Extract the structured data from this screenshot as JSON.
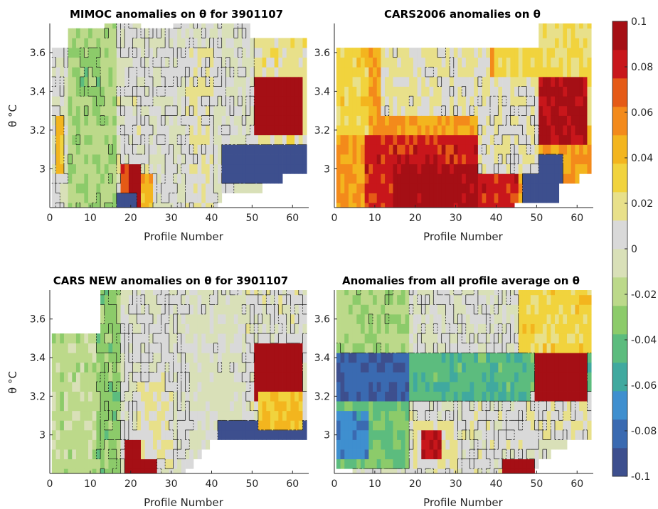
{
  "colors": {
    "ramp": [
      "#3d4f8e",
      "#3a6ab1",
      "#3f8fcf",
      "#40a99f",
      "#5cbc7e",
      "#8ccb6a",
      "#bcd98a",
      "#d9e0b8",
      "#d9d9d9",
      "#e8e08a",
      "#f1d33d",
      "#f3b51e",
      "#f38a1b",
      "#e55a16",
      "#c8161b",
      "#a50f15"
    ],
    "axis": "#262626",
    "contour": "#111111"
  },
  "chart_data": [
    {
      "type": "heatmap",
      "id": "mimoc",
      "title": "MIMOC anomalies on θ  for 3901107",
      "xlabel": "Profile Number",
      "ylabel": "θ °C",
      "xlim": [
        0,
        64
      ],
      "ylim": [
        2.8,
        3.75
      ],
      "xticks": [
        "0",
        "10",
        "20",
        "30",
        "40",
        "50",
        "60"
      ],
      "yticks": [
        "3",
        "3.2",
        "3.4",
        "3.6"
      ],
      "top_limit": [
        3.6,
        3.6,
        3.6,
        3.6,
        3.7,
        3.7,
        3.7,
        3.7,
        3.7,
        3.7,
        3.7,
        3.7,
        3.7,
        3.75,
        3.75,
        3.75,
        3.75,
        3.75,
        3.75,
        3.75,
        3.75,
        3.75,
        3.7,
        3.7,
        3.7,
        3.7,
        3.7,
        3.7,
        3.7,
        3.7,
        3.75,
        3.75,
        3.75,
        3.75,
        3.75,
        3.75,
        3.75,
        3.75,
        3.75,
        3.75,
        3.75,
        3.75,
        3.75,
        3.75,
        3.75,
        3.75,
        3.75,
        3.75,
        3.75,
        3.65,
        3.65,
        3.65,
        3.65,
        3.65,
        3.65,
        3.65,
        3.65,
        3.65,
        3.65,
        3.65,
        3.65,
        3.65,
        3.65
      ],
      "bottom_limit": [
        2.8,
        2.8,
        2.8,
        2.8,
        2.8,
        2.8,
        2.8,
        2.8,
        2.8,
        2.8,
        2.8,
        2.8,
        2.8,
        2.8,
        2.8,
        2.8,
        2.8,
        2.8,
        2.8,
        2.8,
        2.8,
        2.8,
        2.8,
        2.8,
        2.8,
        2.8,
        2.8,
        2.8,
        2.8,
        2.8,
        2.8,
        2.8,
        2.8,
        2.8,
        2.8,
        2.8,
        2.8,
        2.8,
        2.8,
        2.8,
        2.8,
        2.85,
        2.9,
        2.9,
        2.9,
        2.9,
        2.9,
        2.9,
        2.9,
        2.9,
        2.9,
        2.9,
        2.95,
        2.95,
        2.95,
        2.95,
        2.95,
        3.0,
        3.0,
        3.0,
        3.0,
        3.0,
        3.0
      ],
      "zones": [
        {
          "p": [
            1,
            3
          ],
          "t": [
            2.9,
            3.6
          ],
          "v": 0.0
        },
        {
          "p": [
            2,
            3
          ],
          "t": [
            3.0,
            3.25
          ],
          "v": 0.04
        },
        {
          "p": [
            5,
            16
          ],
          "t": [
            2.8,
            3.75
          ],
          "v": -0.022
        },
        {
          "p": [
            8,
            12
          ],
          "t": [
            3.3,
            3.6
          ],
          "v": -0.03
        },
        {
          "p": [
            17,
            24
          ],
          "t": [
            2.8,
            3.5
          ],
          "v": 0.005
        },
        {
          "p": [
            25,
            33
          ],
          "t": [
            2.8,
            3.75
          ],
          "v": 0.002
        },
        {
          "p": [
            34,
            40
          ],
          "t": [
            2.8,
            3.6
          ],
          "v": 0.012
        },
        {
          "p": [
            41,
            50
          ],
          "t": [
            3.15,
            3.75
          ],
          "v": 0.002
        },
        {
          "p": [
            51,
            64
          ],
          "t": [
            3.0,
            3.65
          ],
          "v": 0.018
        },
        {
          "p": [
            43,
            64
          ],
          "t": [
            2.95,
            3.1
          ],
          "v": -0.1
        },
        {
          "p": [
            51,
            62
          ],
          "t": [
            3.2,
            3.45
          ],
          "v": 0.1
        },
        {
          "p": [
            19,
            22
          ],
          "t": [
            2.8,
            3.0
          ],
          "v": 0.1
        },
        {
          "p": [
            18,
            19
          ],
          "t": [
            2.9,
            3.0
          ],
          "v": 0.07
        },
        {
          "p": [
            23,
            25
          ],
          "t": [
            2.8,
            2.95
          ],
          "v": 0.045
        },
        {
          "p": [
            17,
            21
          ],
          "t": [
            2.8,
            2.85
          ],
          "v": -0.1
        }
      ]
    },
    {
      "type": "heatmap",
      "id": "cars2006",
      "title": "CARS2006 anomalies on θ",
      "xlabel": "Profile Number",
      "ylabel": "",
      "xlim": [
        0,
        64
      ],
      "ylim": [
        2.8,
        3.75
      ],
      "xticks": [
        "0",
        "10",
        "20",
        "30",
        "40",
        "50",
        "60"
      ],
      "yticks": [
        "3",
        "3.2",
        "3.4",
        "3.6"
      ],
      "top_limit": [
        3.6,
        3.6,
        3.6,
        3.6,
        3.6,
        3.6,
        3.6,
        3.6,
        3.6,
        3.6,
        3.6,
        3.6,
        3.6,
        3.6,
        3.6,
        3.6,
        3.6,
        3.6,
        3.6,
        3.6,
        3.6,
        3.6,
        3.6,
        3.6,
        3.6,
        3.6,
        3.6,
        3.6,
        3.6,
        3.6,
        3.6,
        3.6,
        3.6,
        3.6,
        3.6,
        3.6,
        3.6,
        3.6,
        3.6,
        3.6,
        3.6,
        3.6,
        3.6,
        3.6,
        3.6,
        3.6,
        3.6,
        3.6,
        3.6,
        3.6,
        3.75,
        3.75,
        3.75,
        3.75,
        3.75,
        3.75,
        3.75,
        3.75,
        3.75,
        3.75,
        3.75,
        3.75,
        3.75
      ],
      "bottom_limit": [
        2.8,
        2.8,
        2.8,
        2.8,
        2.8,
        2.8,
        2.8,
        2.8,
        2.8,
        2.8,
        2.8,
        2.8,
        2.8,
        2.8,
        2.8,
        2.8,
        2.8,
        2.8,
        2.8,
        2.8,
        2.8,
        2.8,
        2.8,
        2.8,
        2.8,
        2.8,
        2.8,
        2.8,
        2.8,
        2.8,
        2.8,
        2.8,
        2.8,
        2.8,
        2.8,
        2.8,
        2.8,
        2.8,
        2.8,
        2.8,
        2.8,
        2.8,
        2.8,
        2.8,
        2.85,
        2.85,
        2.85,
        2.85,
        2.85,
        2.85,
        2.85,
        2.85,
        2.85,
        2.85,
        2.85,
        2.95,
        2.95,
        2.95,
        2.95,
        2.95,
        3.0,
        3.0,
        3.0
      ],
      "zones": [
        {
          "p": [
            1,
            64
          ],
          "t": [
            2.8,
            3.75
          ],
          "v": 0.05
        },
        {
          "p": [
            1,
            8
          ],
          "t": [
            3.2,
            3.6
          ],
          "v": 0.03
        },
        {
          "p": [
            12,
            38
          ],
          "t": [
            3.3,
            3.6
          ],
          "v": 0.012
        },
        {
          "p": [
            40,
            64
          ],
          "t": [
            3.25,
            3.75
          ],
          "v": 0.025
        },
        {
          "p": [
            8,
            45
          ],
          "t": [
            2.8,
            3.15
          ],
          "v": 0.08
        },
        {
          "p": [
            15,
            35
          ],
          "t": [
            2.8,
            3.0
          ],
          "v": 0.095
        },
        {
          "p": [
            47,
            56
          ],
          "t": [
            2.85,
            3.05
          ],
          "v": -0.1
        },
        {
          "p": [
            51,
            62
          ],
          "t": [
            3.15,
            3.45
          ],
          "v": 0.09
        },
        {
          "p": [
            36,
            50
          ],
          "t": [
            3.0,
            3.45
          ],
          "v": 0.01
        }
      ]
    },
    {
      "type": "heatmap",
      "id": "carsnew",
      "title": "CARS NEW anomalies on θ for 3901107",
      "xlabel": "Profile Number",
      "ylabel": "θ °C",
      "xlim": [
        0,
        64
      ],
      "ylim": [
        2.8,
        3.75
      ],
      "xticks": [
        "0",
        "10",
        "20",
        "30",
        "40",
        "50",
        "60"
      ],
      "yticks": [
        "3",
        "3.2",
        "3.4",
        "3.6"
      ],
      "top_limit": [
        3.5,
        3.5,
        3.5,
        3.5,
        3.5,
        3.5,
        3.5,
        3.5,
        3.5,
        3.5,
        3.5,
        3.5,
        3.75,
        3.75,
        3.75,
        3.75,
        3.75,
        3.75,
        3.75,
        3.75,
        3.75,
        3.75,
        3.75,
        3.75,
        3.75,
        3.75,
        3.75,
        3.75,
        3.75,
        3.75,
        3.75,
        3.75,
        3.75,
        3.75,
        3.75,
        3.75,
        3.75,
        3.75,
        3.75,
        3.75,
        3.75,
        3.75,
        3.75,
        3.75,
        3.75,
        3.75,
        3.75,
        3.75,
        3.75,
        3.75,
        3.75,
        3.75,
        3.75,
        3.75,
        3.75,
        3.75,
        3.75,
        3.75,
        3.75,
        3.75,
        3.75,
        3.75,
        3.75
      ],
      "bottom_limit": [
        2.8,
        2.8,
        2.8,
        2.8,
        2.8,
        2.8,
        2.8,
        2.8,
        2.8,
        2.8,
        2.8,
        2.8,
        2.8,
        2.8,
        2.8,
        2.8,
        2.8,
        2.8,
        2.8,
        2.8,
        2.8,
        2.8,
        2.8,
        2.8,
        2.8,
        2.8,
        2.8,
        2.8,
        2.8,
        2.8,
        2.8,
        2.8,
        2.8,
        2.85,
        2.85,
        2.9,
        2.9,
        2.95,
        2.95,
        3.0,
        3.0,
        3.0,
        3.0,
        3.0,
        3.0,
        3.0,
        3.0,
        3.0,
        3.0,
        3.0,
        3.0,
        3.0,
        3.0,
        3.0,
        3.0,
        3.0,
        3.0,
        3.0,
        3.0,
        3.0,
        3.0,
        3.0,
        3.0
      ],
      "zones": [
        {
          "p": [
            1,
            11
          ],
          "t": [
            2.8,
            3.5
          ],
          "v": -0.018
        },
        {
          "p": [
            12,
            17
          ],
          "t": [
            2.8,
            3.75
          ],
          "v": -0.03
        },
        {
          "p": [
            18,
            34
          ],
          "t": [
            2.8,
            3.75
          ],
          "v": 0.003
        },
        {
          "p": [
            22,
            30
          ],
          "t": [
            2.85,
            3.3
          ],
          "v": 0.012
        },
        {
          "p": [
            35,
            48
          ],
          "t": [
            2.85,
            3.75
          ],
          "v": -0.003
        },
        {
          "p": [
            49,
            64
          ],
          "t": [
            3.0,
            3.75
          ],
          "v": 0.005
        },
        {
          "p": [
            42,
            64
          ],
          "t": [
            3.0,
            3.05
          ],
          "v": -0.1
        },
        {
          "p": [
            51,
            62
          ],
          "t": [
            3.2,
            3.45
          ],
          "v": 0.1
        },
        {
          "p": [
            19,
            22
          ],
          "t": [
            2.8,
            2.95
          ],
          "v": 0.1
        },
        {
          "p": [
            22,
            26
          ],
          "t": [
            2.8,
            2.85
          ],
          "v": 0.1
        },
        {
          "p": [
            52,
            62
          ],
          "t": [
            3.05,
            3.2
          ],
          "v": 0.04
        }
      ]
    },
    {
      "type": "heatmap",
      "id": "allavg",
      "title": "Anomalies from all profile average on θ",
      "xlabel": "Profile Number",
      "ylabel": "",
      "xlim": [
        0,
        64
      ],
      "ylim": [
        2.8,
        3.75
      ],
      "xticks": [
        "0",
        "10",
        "20",
        "30",
        "40",
        "50",
        "60"
      ],
      "yticks": [
        "3",
        "3.2",
        "3.4",
        "3.6"
      ],
      "top_limit": [
        3.75,
        3.75,
        3.75,
        3.75,
        3.75,
        3.75,
        3.75,
        3.75,
        3.75,
        3.75,
        3.75,
        3.75,
        3.75,
        3.75,
        3.75,
        3.75,
        3.75,
        3.75,
        3.75,
        3.75,
        3.75,
        3.75,
        3.75,
        3.75,
        3.75,
        3.75,
        3.75,
        3.75,
        3.75,
        3.75,
        3.75,
        3.75,
        3.75,
        3.75,
        3.75,
        3.75,
        3.75,
        3.75,
        3.75,
        3.75,
        3.75,
        3.75,
        3.75,
        3.75,
        3.75,
        3.75,
        3.75,
        3.75,
        3.75,
        3.75,
        3.75,
        3.75,
        3.75,
        3.75,
        3.75,
        3.75,
        3.75,
        3.75,
        3.75,
        3.75,
        3.75,
        3.75,
        3.75
      ],
      "bottom_limit": [
        2.85,
        2.85,
        2.85,
        2.85,
        2.8,
        2.8,
        2.8,
        2.8,
        2.8,
        2.8,
        2.8,
        2.8,
        2.8,
        2.8,
        2.8,
        2.8,
        2.8,
        2.8,
        2.8,
        2.8,
        2.8,
        2.8,
        2.8,
        2.8,
        2.8,
        2.8,
        2.8,
        2.8,
        2.8,
        2.8,
        2.8,
        2.8,
        2.8,
        2.8,
        2.8,
        2.8,
        2.8,
        2.8,
        2.8,
        2.8,
        2.8,
        2.8,
        2.8,
        2.8,
        2.8,
        2.8,
        2.8,
        2.8,
        2.8,
        2.85,
        2.9,
        2.9,
        2.9,
        2.95,
        2.95,
        2.95,
        2.95,
        3.0,
        3.0,
        3.0,
        3.0,
        3.0,
        3.0
      ],
      "zones": [
        {
          "p": [
            1,
            18
          ],
          "t": [
            3.0,
            3.75
          ],
          "v": -0.022
        },
        {
          "p": [
            19,
            45
          ],
          "t": [
            3.45,
            3.75
          ],
          "v": 0.002
        },
        {
          "p": [
            46,
            64
          ],
          "t": [
            3.4,
            3.75
          ],
          "v": 0.03
        },
        {
          "p": [
            1,
            64
          ],
          "t": [
            3.2,
            3.4
          ],
          "v": -0.045
        },
        {
          "p": [
            1,
            18
          ],
          "t": [
            3.2,
            3.4
          ],
          "v": -0.085
        },
        {
          "p": [
            1,
            18
          ],
          "t": [
            2.85,
            3.15
          ],
          "v": -0.04
        },
        {
          "p": [
            1,
            8
          ],
          "t": [
            2.9,
            3.1
          ],
          "v": -0.07
        },
        {
          "p": [
            19,
            48
          ],
          "t": [
            2.8,
            3.15
          ],
          "v": 0.005
        },
        {
          "p": [
            20,
            30
          ],
          "t": [
            2.85,
            3.05
          ],
          "v": 0.015
        },
        {
          "p": [
            49,
            64
          ],
          "t": [
            3.0,
            3.2
          ],
          "v": 0.01
        },
        {
          "p": [
            50,
            62
          ],
          "t": [
            3.2,
            3.4
          ],
          "v": 0.1
        },
        {
          "p": [
            42,
            49
          ],
          "t": [
            2.8,
            2.85
          ],
          "v": 0.1
        },
        {
          "p": [
            22,
            26
          ],
          "t": [
            2.9,
            3.0
          ],
          "v": 0.09
        }
      ]
    }
  ],
  "colorbar": {
    "ticks": [
      "0.1",
      "0.08",
      "0.06",
      "0.04",
      "0.02",
      "0",
      "-0.02",
      "-0.04",
      "-0.06",
      "-0.08",
      "-0.1"
    ],
    "range": [
      -0.1,
      0.1
    ]
  }
}
